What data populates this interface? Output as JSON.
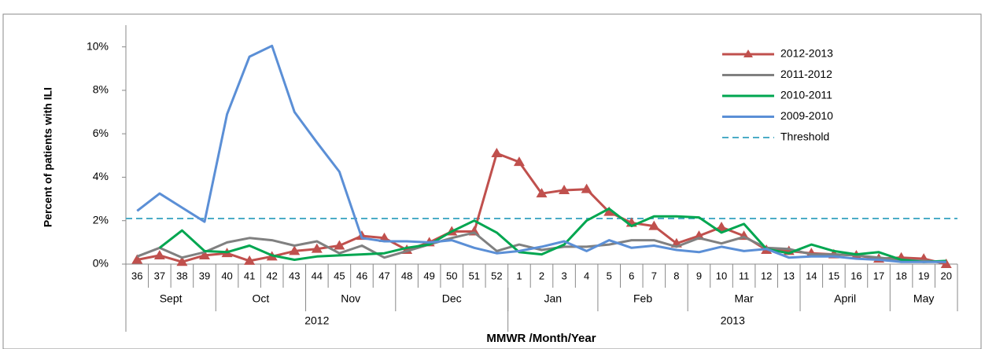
{
  "chart_data": {
    "type": "line",
    "y_label": "Percent of patients with ILI",
    "x_label": "MMWR /Month/Year",
    "categories": [
      "36",
      "37",
      "38",
      "39",
      "40",
      "41",
      "42",
      "43",
      "44",
      "45",
      "46",
      "47",
      "48",
      "49",
      "50",
      "51",
      "52",
      "1",
      "2",
      "3",
      "4",
      "5",
      "6",
      "7",
      "8",
      "9",
      "10",
      "11",
      "12",
      "13",
      "14",
      "15",
      "16",
      "17",
      "18",
      "19",
      "20"
    ],
    "months": [
      {
        "label": "Sept",
        "span": 4
      },
      {
        "label": "Oct",
        "span": 4
      },
      {
        "label": "Nov",
        "span": 4
      },
      {
        "label": "Dec",
        "span": 5
      },
      {
        "label": "Jan",
        "span": 4
      },
      {
        "label": "Feb",
        "span": 4
      },
      {
        "label": "Mar",
        "span": 5
      },
      {
        "label": "April",
        "span": 4
      },
      {
        "label": "May",
        "span": 3
      }
    ],
    "years": [
      {
        "label": "2012",
        "span": 17
      },
      {
        "label": "2013",
        "span": 20
      }
    ],
    "ylim": [
      0,
      11
    ],
    "yticks": [
      {
        "value": 0,
        "label": "0%"
      },
      {
        "value": 2,
        "label": "2%"
      },
      {
        "value": 4,
        "label": "4%"
      },
      {
        "value": 6,
        "label": "6%"
      },
      {
        "value": 8,
        "label": "8%"
      },
      {
        "value": 10,
        "label": "10%"
      }
    ],
    "series": [
      {
        "name": "2012-2013",
        "color": "#c0504d",
        "marker": "triangle",
        "values": [
          0.2,
          0.4,
          0.1,
          0.4,
          0.5,
          0.15,
          0.35,
          0.6,
          0.7,
          0.85,
          1.3,
          1.2,
          0.65,
          1.0,
          1.5,
          1.5,
          5.1,
          4.7,
          3.25,
          3.4,
          3.45,
          2.4,
          1.9,
          1.75,
          0.95,
          1.3,
          1.7,
          1.3,
          0.65,
          0.6,
          0.5,
          0.45,
          0.4,
          0.25,
          0.3,
          0.25,
          0.0
        ]
      },
      {
        "name": "2011-2012",
        "color": "#808080",
        "values": [
          0.35,
          0.75,
          0.3,
          0.55,
          1.0,
          1.2,
          1.1,
          0.85,
          1.05,
          0.5,
          0.85,
          0.3,
          0.6,
          0.9,
          1.2,
          1.45,
          0.6,
          0.9,
          0.65,
          0.8,
          0.8,
          0.9,
          1.1,
          1.1,
          0.8,
          1.2,
          0.95,
          1.25,
          0.75,
          0.7,
          0.45,
          0.45,
          0.4,
          0.3,
          0.2,
          0.15,
          0.1
        ]
      },
      {
        "name": "2010-2011",
        "color": "#00a650",
        "values": [
          null,
          0.75,
          1.55,
          0.6,
          0.55,
          0.85,
          0.4,
          0.2,
          0.35,
          0.4,
          0.45,
          0.5,
          0.75,
          0.9,
          1.5,
          2.0,
          1.45,
          0.55,
          0.45,
          0.9,
          2.0,
          2.55,
          1.75,
          2.2,
          2.2,
          2.15,
          1.45,
          1.85,
          0.7,
          0.5,
          0.9,
          0.6,
          0.45,
          0.55,
          0.2,
          0.1,
          0.15
        ]
      },
      {
        "name": "2009-2010",
        "color": "#5b8fd6",
        "values": [
          2.45,
          3.25,
          2.6,
          1.95,
          6.9,
          9.55,
          10.05,
          7.0,
          5.6,
          4.25,
          1.2,
          1.05,
          1.05,
          1.0,
          1.1,
          0.75,
          0.5,
          0.6,
          0.8,
          1.05,
          0.6,
          1.1,
          0.75,
          0.85,
          0.65,
          0.55,
          0.8,
          0.6,
          0.7,
          0.3,
          0.35,
          0.35,
          0.25,
          0.2,
          0.1,
          0.1,
          0.1
        ]
      }
    ],
    "threshold": {
      "name": "Threshold",
      "color": "#4bacc6",
      "value": 2.1
    }
  }
}
